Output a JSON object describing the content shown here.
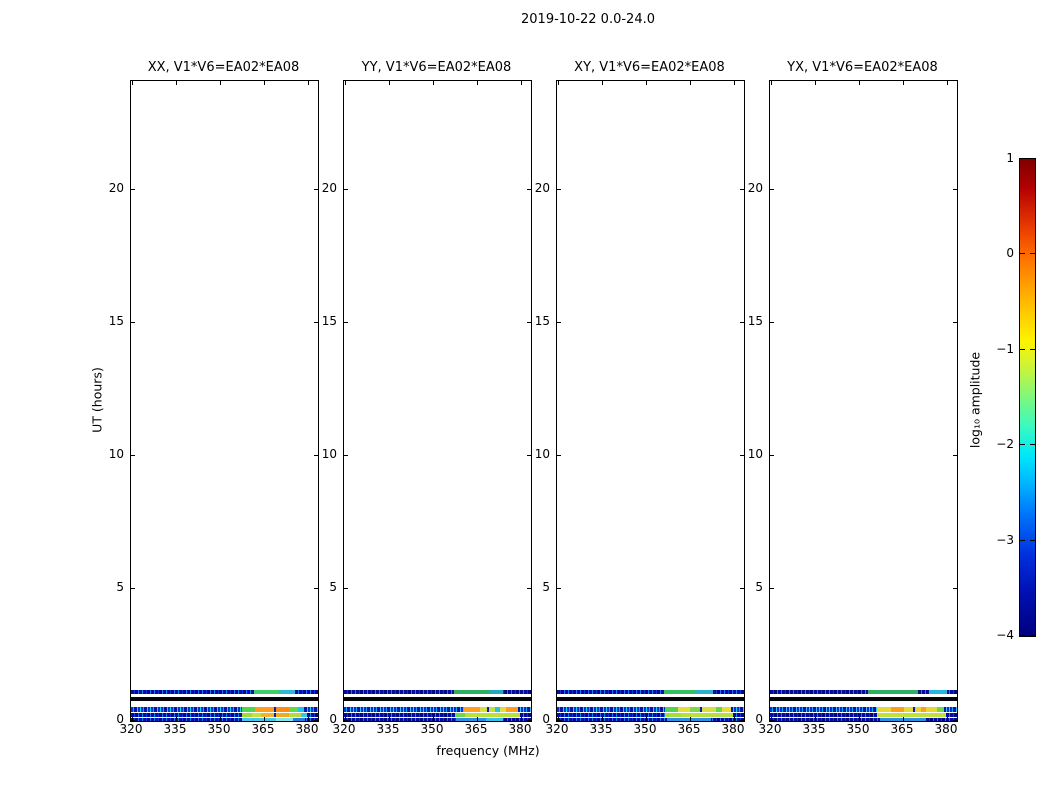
{
  "figure_title": "2019-10-22 0.0-24.0",
  "chart_data": {
    "type": "heatmap",
    "title": "2019-10-22 0.0-24.0",
    "xlabel": "frequency (MHz)",
    "ylabel": "UT (hours)",
    "x_ticks": [
      320,
      335,
      350,
      365,
      380
    ],
    "y_ticks": [
      0,
      5,
      10,
      15,
      20
    ],
    "xlim": [
      319.7,
      383.4
    ],
    "ylim": [
      0,
      24.0
    ],
    "grid": false,
    "colorbar": {
      "label": "log₁₀ amplitude",
      "ticks": [
        1,
        0,
        -1,
        -2,
        -3,
        -4
      ],
      "lim": [
        -4,
        1
      ],
      "colormap": "jet"
    },
    "panels": [
      {
        "title": "XX, V1*V6=EA02*EA08",
        "bands": [
          {
            "ut0": 1.01,
            "ut1": 1.16,
            "base": "speckle",
            "base_level": -3.2,
            "segments": [
              {
                "f0": 361.5,
                "f1": 370,
                "color": "#3ecf6a",
                "level": -1.4
              },
              {
                "f0": 370,
                "f1": 375.5,
                "color": "#2ab9d9",
                "level": -2.2
              }
            ]
          },
          {
            "ut0": 0.75,
            "ut1": 0.9,
            "base": "black",
            "base_level": -4.0,
            "segments": []
          },
          {
            "ut0": 0.34,
            "ut1": 0.53,
            "base": "bright",
            "base_level": -2.8,
            "segments": [
              {
                "f0": 357.5,
                "f1": 362,
                "color": "#55d34f",
                "level": -1.3
              },
              {
                "f0": 362,
                "f1": 368.3,
                "color": "#ff9d1c",
                "level": -0.4
              },
              {
                "f0": 368.3,
                "f1": 369.2,
                "color": "#0a1fa8",
                "level": -3.3
              },
              {
                "f0": 369.2,
                "f1": 373.5,
                "color": "#ff8c12",
                "level": -0.4
              },
              {
                "f0": 373.5,
                "f1": 376.5,
                "color": "#63d84d",
                "level": -1.3
              },
              {
                "f0": 376.5,
                "f1": 378.5,
                "color": "#22c4e0",
                "level": -2.2
              }
            ]
          },
          {
            "ut0": 0.15,
            "ut1": 0.3,
            "base": "speckle",
            "base_level": -3.2,
            "segments": [
              {
                "f0": 357.5,
                "f1": 361,
                "color": "#9fdc3a",
                "level": -1.0
              },
              {
                "f0": 361,
                "f1": 364,
                "color": "#c8e23c",
                "level": -0.9
              },
              {
                "f0": 364,
                "f1": 368.3,
                "color": "#f2b428",
                "level": -0.5
              },
              {
                "f0": 368.3,
                "f1": 369.2,
                "color": "#0a1fa8",
                "level": -3.3
              },
              {
                "f0": 369.2,
                "f1": 373.5,
                "color": "#eeae22",
                "level": -0.5
              },
              {
                "f0": 373.5,
                "f1": 377.5,
                "color": "#b4dd3a",
                "level": -1.0
              },
              {
                "f0": 377.5,
                "f1": 379.5,
                "color": "#35c8e8",
                "level": -2.2
              }
            ]
          },
          {
            "ut0": 0.0,
            "ut1": 0.11,
            "base": "speckle",
            "base_level": -3.2,
            "segments": [
              {
                "f0": 357.5,
                "f1": 369,
                "color": "#49c8ef",
                "level": -2.1
              },
              {
                "f0": 369,
                "f1": 375,
                "color": "#8ae4ea",
                "level": -1.9
              },
              {
                "f0": 375,
                "f1": 379,
                "color": "#2a7de0",
                "level": -2.8
              }
            ]
          }
        ]
      },
      {
        "title": "YY, V1*V6=EA02*EA08",
        "bands": [
          {
            "ut0": 1.01,
            "ut1": 1.16,
            "base": "speckle",
            "base_level": -3.2,
            "segments": [
              {
                "f0": 357,
                "f1": 369,
                "color": "#2fae62",
                "level": -1.6
              },
              {
                "f0": 369,
                "f1": 374,
                "color": "#1fa8c8",
                "level": -2.3
              }
            ]
          },
          {
            "ut0": 0.75,
            "ut1": 0.9,
            "base": "black",
            "base_level": -4.0,
            "segments": []
          },
          {
            "ut0": 0.34,
            "ut1": 0.53,
            "base": "bright",
            "base_level": -2.8,
            "segments": [
              {
                "f0": 360.5,
                "f1": 366,
                "color": "#ffa01e",
                "level": -0.4
              },
              {
                "f0": 366,
                "f1": 368.3,
                "color": "#d8e23c",
                "level": -0.9
              },
              {
                "f0": 368.3,
                "f1": 369.2,
                "color": "#0a1fa8",
                "level": -3.3
              },
              {
                "f0": 369.2,
                "f1": 371,
                "color": "#bfe040",
                "level": -0.9
              },
              {
                "f0": 371,
                "f1": 373,
                "color": "#2ec0e0",
                "level": -2.2
              },
              {
                "f0": 373,
                "f1": 375,
                "color": "#d8e240",
                "level": -0.9
              },
              {
                "f0": 375,
                "f1": 379,
                "color": "#ff9d1c",
                "level": -0.4
              }
            ]
          },
          {
            "ut0": 0.15,
            "ut1": 0.3,
            "base": "speckle",
            "base_level": -3.2,
            "segments": [
              {
                "f0": 357.5,
                "f1": 361,
                "color": "#6fd84a",
                "level": -1.2
              },
              {
                "f0": 361,
                "f1": 379.5,
                "color": "#b9e03c",
                "level": -0.9
              }
            ]
          },
          {
            "ut0": 0.0,
            "ut1": 0.11,
            "base": "speckle",
            "base_level": -3.2,
            "segments": [
              {
                "f0": 358,
                "f1": 368,
                "color": "#2e8ee0",
                "level": -2.6
              },
              {
                "f0": 368,
                "f1": 374,
                "color": "#38c0e8",
                "level": -2.2
              }
            ]
          }
        ]
      },
      {
        "title": "XY, V1*V6=EA02*EA08",
        "bands": [
          {
            "ut0": 1.01,
            "ut1": 1.16,
            "base": "speckle",
            "base_level": -3.2,
            "segments": [
              {
                "f0": 356,
                "f1": 367,
                "color": "#33c060",
                "level": -1.5
              },
              {
                "f0": 367,
                "f1": 373,
                "color": "#28b0d0",
                "level": -2.2
              }
            ]
          },
          {
            "ut0": 0.75,
            "ut1": 0.9,
            "base": "black",
            "base_level": -4.0,
            "segments": []
          },
          {
            "ut0": 0.34,
            "ut1": 0.53,
            "base": "bright",
            "base_level": -2.8,
            "segments": [
              {
                "f0": 356.5,
                "f1": 361,
                "color": "#54d24e",
                "level": -1.3
              },
              {
                "f0": 361,
                "f1": 365,
                "color": "#e0e23a",
                "level": -0.9
              },
              {
                "f0": 365,
                "f1": 368.3,
                "color": "#7fd848",
                "level": -1.2
              },
              {
                "f0": 368.3,
                "f1": 369.2,
                "color": "#0a1fa8",
                "level": -3.3
              },
              {
                "f0": 369.2,
                "f1": 374,
                "color": "#d8e03c",
                "level": -0.9
              },
              {
                "f0": 374,
                "f1": 376,
                "color": "#63d84d",
                "level": -1.3
              },
              {
                "f0": 376,
                "f1": 379,
                "color": "#e8df38",
                "level": -0.9
              }
            ]
          },
          {
            "ut0": 0.15,
            "ut1": 0.3,
            "base": "speckle",
            "base_level": -3.2,
            "segments": [
              {
                "f0": 356.5,
                "f1": 362,
                "color": "#a8dc3e",
                "level": -1.0
              },
              {
                "f0": 362,
                "f1": 379.5,
                "color": "#b9e03c",
                "level": -0.9
              }
            ]
          },
          {
            "ut0": 0.0,
            "ut1": 0.11,
            "base": "speckle",
            "base_level": -3.2,
            "segments": [
              {
                "f0": 357,
                "f1": 372,
                "color": "#2e8ee0",
                "level": -2.6
              }
            ]
          }
        ]
      },
      {
        "title": "YX, V1*V6=EA02*EA08",
        "bands": [
          {
            "ut0": 1.01,
            "ut1": 1.16,
            "base": "speckle",
            "base_level": -3.2,
            "segments": [
              {
                "f0": 353,
                "f1": 370,
                "color": "#2fae62",
                "level": -1.6
              },
              {
                "f0": 374,
                "f1": 380,
                "color": "#22b8e0",
                "level": -2.2
              }
            ]
          },
          {
            "ut0": 0.75,
            "ut1": 0.9,
            "base": "black",
            "base_level": -4.0,
            "segments": []
          },
          {
            "ut0": 0.34,
            "ut1": 0.53,
            "base": "bright",
            "base_level": -2.8,
            "segments": [
              {
                "f0": 356,
                "f1": 361,
                "color": "#e8d832",
                "level": -0.8
              },
              {
                "f0": 361,
                "f1": 365.5,
                "color": "#ff9d1c",
                "level": -0.4
              },
              {
                "f0": 365.5,
                "f1": 368.3,
                "color": "#e2dc36",
                "level": -0.8
              },
              {
                "f0": 368.3,
                "f1": 369.2,
                "color": "#0a1fa8",
                "level": -3.3
              },
              {
                "f0": 369.2,
                "f1": 371,
                "color": "#ecd430",
                "level": -0.8
              },
              {
                "f0": 371,
                "f1": 373,
                "color": "#ff9d1c",
                "level": -0.4
              },
              {
                "f0": 373,
                "f1": 376.5,
                "color": "#e8d832",
                "level": -0.8
              },
              {
                "f0": 376.5,
                "f1": 379,
                "color": "#6fd84a",
                "level": -1.2
              }
            ]
          },
          {
            "ut0": 0.15,
            "ut1": 0.3,
            "base": "speckle",
            "base_level": -3.2,
            "segments": [
              {
                "f0": 356,
                "f1": 379.5,
                "color": "#c2e13a",
                "level": -0.9
              }
            ]
          },
          {
            "ut0": 0.0,
            "ut1": 0.11,
            "base": "speckle",
            "base_level": -3.2,
            "segments": [
              {
                "f0": 357,
                "f1": 373,
                "color": "#2e8ee0",
                "level": -2.6
              }
            ]
          }
        ]
      }
    ]
  }
}
